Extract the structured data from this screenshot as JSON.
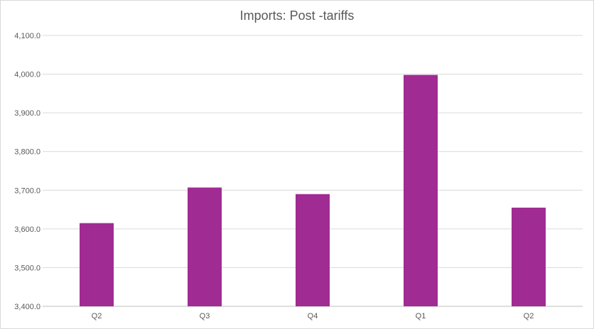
{
  "chart_data": {
    "type": "bar",
    "title": "Imports: Post  -tariffs",
    "categories": [
      "Q2",
      "Q3",
      "Q4",
      "Q1",
      "Q2"
    ],
    "series": [
      {
        "values": [
          3615,
          3707,
          3690,
          3998,
          3655
        ],
        "color": "#a02b93"
      }
    ],
    "ylim": [
      3400,
      4100
    ],
    "yticks": [
      "3,400.0",
      "3,500.0",
      "3,600.0",
      "3,700.0",
      "3,800.0",
      "3,900.0",
      "4,000.0",
      "4,100.0"
    ],
    "grid": true,
    "legend": "none",
    "xlabel": "",
    "ylabel": ""
  }
}
